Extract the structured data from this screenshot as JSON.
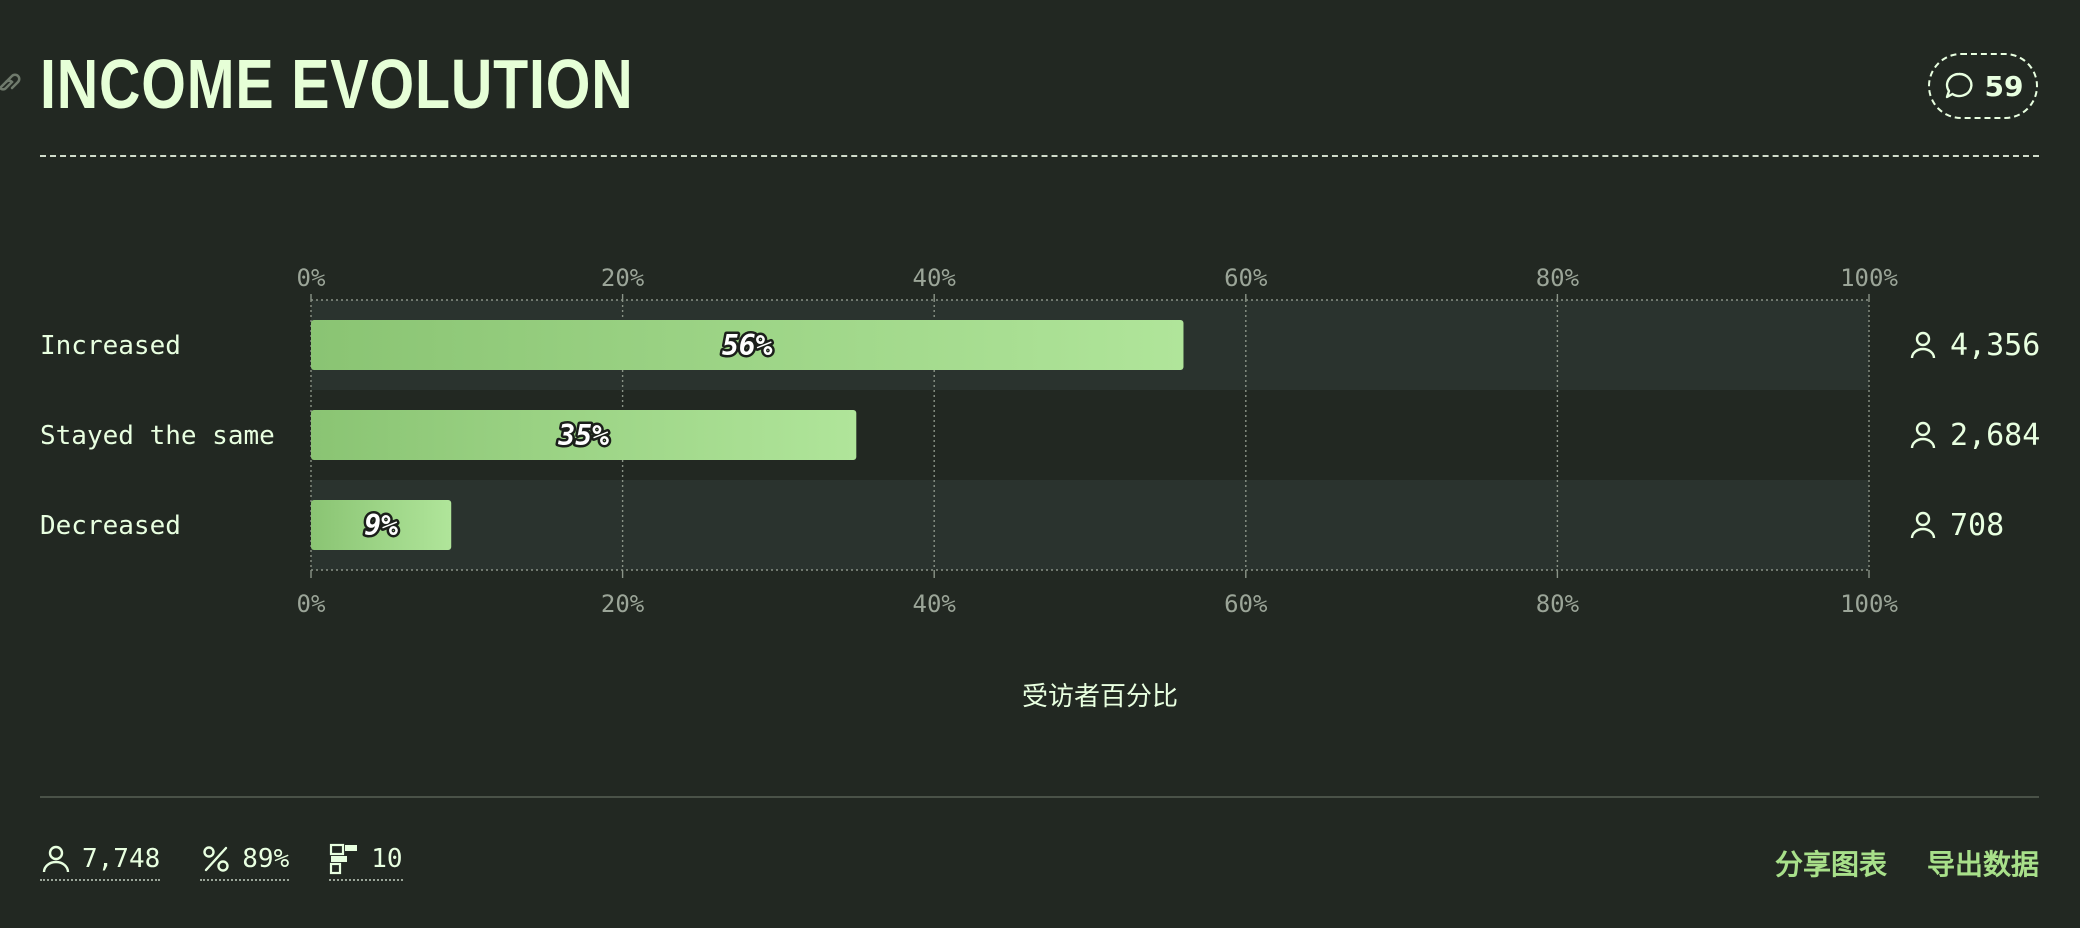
{
  "header": {
    "title": "INCOME EVOLUTION",
    "comment_count": "59"
  },
  "chart_data": {
    "type": "bar",
    "orientation": "horizontal",
    "categories": [
      "Increased",
      "Stayed the same",
      "Decreased"
    ],
    "values": [
      56,
      35,
      9
    ],
    "value_labels": [
      "56%",
      "35%",
      "9%"
    ],
    "respondents": [
      "4,356",
      "2,684",
      "708"
    ],
    "xlim": [
      0,
      100
    ],
    "ticks": [
      "0%",
      "20%",
      "40%",
      "60%",
      "80%",
      "100%"
    ],
    "xlabel": "受访者百分比",
    "grid": true,
    "colors": {
      "bar_start": "#8ac473",
      "bar_end": "#b0e59a",
      "row_band": "#2a332e"
    }
  },
  "footer": {
    "stats": [
      {
        "icon": "person-icon",
        "value": "7,748"
      },
      {
        "icon": "percent-icon",
        "value": "89%"
      },
      {
        "icon": "questions-icon",
        "value": "10"
      }
    ],
    "share_label": "分享图表",
    "export_label": "导出数据"
  }
}
